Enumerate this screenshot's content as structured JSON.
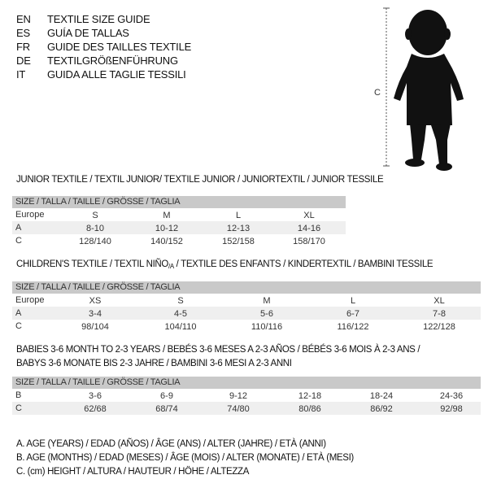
{
  "header": {
    "languages": [
      {
        "code": "EN",
        "title": "TEXTILE SIZE GUIDE"
      },
      {
        "code": "ES",
        "title": "GUÍA DE TALLAS"
      },
      {
        "code": "FR",
        "title": "GUIDE DES TAILLES TEXTILE"
      },
      {
        "code": "DE",
        "title": "TEXTILGRÖßENFÜHRUNG"
      },
      {
        "code": "IT",
        "title": "GUIDA ALLE TAGLIE TESSILI"
      }
    ],
    "figure_label": "C"
  },
  "size_header": "SIZE / TALLA / TAILLE / GRÖSSE / TAGLIA",
  "junior": {
    "title": "JUNIOR TEXTILE / TEXTIL JUNIOR/ TEXTILE JUNIOR / JUNIORTEXTIL / JUNIOR TESSILE",
    "rows": [
      {
        "label": "Europe",
        "values": [
          "S",
          "M",
          "L",
          "XL"
        ]
      },
      {
        "label": "A",
        "values": [
          "8-10",
          "10-12",
          "12-13",
          "14-16"
        ]
      },
      {
        "label": "C",
        "values": [
          "128/140",
          "140/152",
          "152/158",
          "158/170"
        ]
      }
    ]
  },
  "children": {
    "title_a": "CHILDREN'S TEXTILE / TEXTIL NIÑO",
    "title_sub": "/A",
    "title_b": " / TEXTILE DES ENFANTS / KINDERTEXTIL / BAMBINI TESSILE",
    "rows": [
      {
        "label": "Europe",
        "values": [
          "XS",
          "S",
          "M",
          "L",
          "XL"
        ]
      },
      {
        "label": "A",
        "values": [
          "3-4",
          "4-5",
          "5-6",
          "6-7",
          "7-8"
        ]
      },
      {
        "label": "C",
        "values": [
          "98/104",
          "104/110",
          "110/116",
          "116/122",
          "122/128"
        ]
      }
    ]
  },
  "babies": {
    "title_line1": "BABIES 3-6 MONTH TO 2-3 YEARS / BEBÉS 3-6 MESES A 2-3 AÑOS / BÉBÉS 3-6 MOIS À 2-3 ANS /",
    "title_line2": "BABYS 3-6 MONATE BIS 2-3 JAHRE / BAMBINI 3-6 MESI A 2-3 ANNI",
    "rows": [
      {
        "label": "B",
        "values": [
          "3-6",
          "6-9",
          "9-12",
          "12-18",
          "18-24",
          "24-36"
        ]
      },
      {
        "label": "C",
        "values": [
          "62/68",
          "68/74",
          "74/80",
          "80/86",
          "86/92",
          "92/98"
        ]
      }
    ]
  },
  "legend": [
    "A. AGE (YEARS) / EDAD (AÑOS) / ÂGE (ANS) / ALTER (JAHRE) / ETÀ (ANNI)",
    "B. AGE (MONTHS) / EDAD (MESES) / ÂGE (MOIS) / ALTER (MONATE) / ETÀ (MESI)",
    "C. (cm) HEIGHT / ALTURA / HAUTEUR / HÖHE / ALTEZZA"
  ],
  "colors": {
    "header_bar": "#c9c9c9",
    "row_shade": "#efefef"
  }
}
